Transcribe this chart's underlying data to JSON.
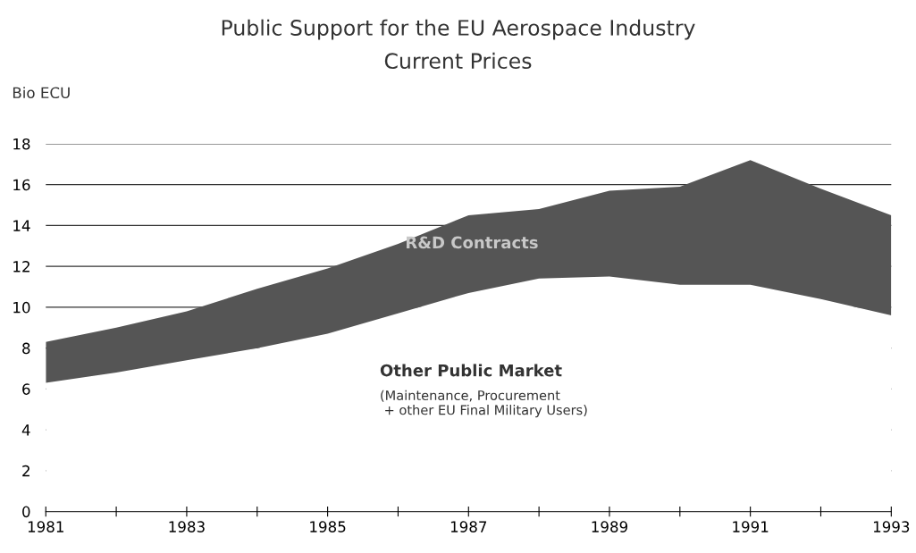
{
  "chart_data": {
    "type": "area",
    "stacked": true,
    "title": "Public Support for the EU Aerospace Industry",
    "subtitle": "Current Prices",
    "ylabel": "Bio ECU",
    "x": [
      1981,
      1982,
      1983,
      1984,
      1985,
      1986,
      1987,
      1988,
      1989,
      1990,
      1991,
      1992,
      1993
    ],
    "series": [
      {
        "name": "Other Public Market",
        "color": "#ffffff",
        "values": [
          6.3,
          6.8,
          7.4,
          8.0,
          8.7,
          9.7,
          10.7,
          11.4,
          11.5,
          11.1,
          11.1,
          10.4,
          9.6
        ]
      },
      {
        "name": "R&D Contracts",
        "color": "#555555",
        "values": [
          2.0,
          2.2,
          2.4,
          2.9,
          3.2,
          3.4,
          3.8,
          3.4,
          4.2,
          4.8,
          6.1,
          5.4,
          4.9
        ]
      }
    ],
    "annotations": [
      "(Maintenance, Procurement\n + other EU Final Military Users)"
    ],
    "xlim": [
      1981,
      1993
    ],
    "xticks": [
      1981,
      {
        "value": 1982,
        "label": null
      },
      1983,
      {
        "value": 1984,
        "label": null
      },
      1985,
      {
        "value": 1986,
        "label": null
      },
      1987,
      {
        "value": 1988,
        "label": null
      },
      1989,
      {
        "value": 1990,
        "label": null
      },
      1991,
      {
        "value": 1992,
        "label": null
      },
      1993
    ],
    "ylim": [
      0,
      18
    ],
    "yticks": [
      0,
      2,
      4,
      6,
      8,
      10,
      12,
      14,
      16,
      18
    ],
    "grid": "y",
    "legend": false
  }
}
